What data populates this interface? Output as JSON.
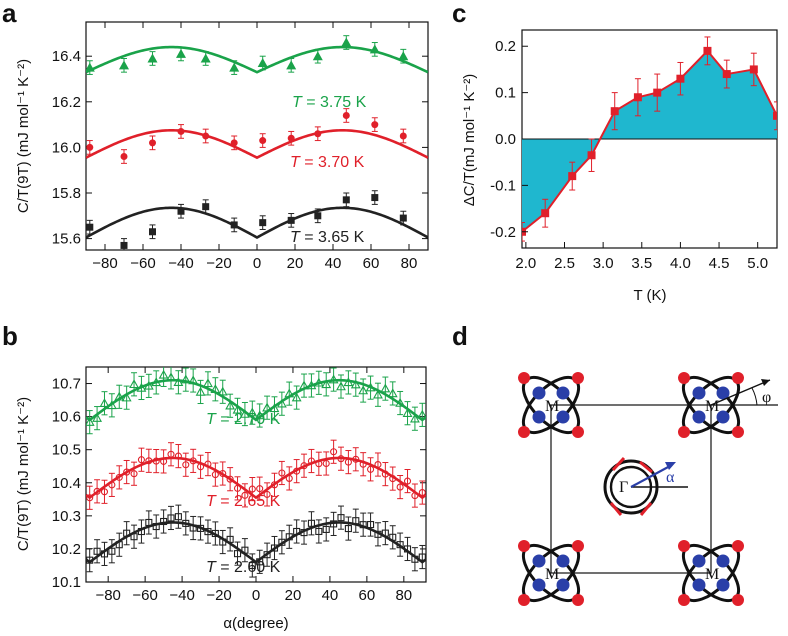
{
  "colors": {
    "green": "#1aa34a",
    "red": "#e0202a",
    "black": "#222222",
    "cyan": "#1fb7cf",
    "blue": "#2a3fa8"
  },
  "chart_data": [
    {
      "panel": "a",
      "type": "scatter",
      "ylabel": "C/T(9T) (mJ mol⁻¹ K⁻²)",
      "xlabel": "",
      "xlim": [
        -90,
        90
      ],
      "ylim": [
        15.55,
        16.55
      ],
      "xticks": [
        -80,
        -60,
        -40,
        -20,
        0,
        20,
        40,
        60,
        80
      ],
      "yticks": [
        15.6,
        15.8,
        16.0,
        16.2,
        16.4
      ],
      "ytick_labels": [
        "15.6",
        "15.8",
        "16.0",
        "16.2",
        "16.4"
      ],
      "series": [
        {
          "name": "T = 3.75 K",
          "label_prefix": "T",
          "label_value": " = 3.75 K",
          "color": "green",
          "marker": "triangle",
          "x": [
            -88,
            -70,
            -55,
            -40,
            -27,
            -12,
            3,
            18,
            32,
            47,
            62,
            77
          ],
          "y": [
            16.35,
            16.36,
            16.39,
            16.41,
            16.39,
            16.35,
            16.37,
            16.36,
            16.4,
            16.46,
            16.43,
            16.4
          ],
          "err": 0.03,
          "fit": {
            "base": 16.33,
            "amp": 0.11
          }
        },
        {
          "name": "T = 3.70 K",
          "label_prefix": "T",
          "label_value": " = 3.70 K",
          "color": "red",
          "marker": "circle",
          "x": [
            -88,
            -70,
            -55,
            -40,
            -27,
            -12,
            3,
            18,
            32,
            47,
            62,
            77
          ],
          "y": [
            16.0,
            15.96,
            16.02,
            16.07,
            16.05,
            16.02,
            16.03,
            16.04,
            16.06,
            16.14,
            16.1,
            16.05
          ],
          "err": 0.03,
          "fit": {
            "base": 15.955,
            "amp": 0.12
          }
        },
        {
          "name": "T = 3.65 K",
          "label_prefix": "T",
          "label_value": " = 3.65 K",
          "color": "black",
          "marker": "square",
          "x": [
            -88,
            -70,
            -55,
            -40,
            -27,
            -12,
            3,
            18,
            32,
            47,
            62,
            77
          ],
          "y": [
            15.65,
            15.57,
            15.63,
            15.72,
            15.74,
            15.66,
            15.67,
            15.68,
            15.7,
            15.77,
            15.78,
            15.69
          ],
          "err": 0.03,
          "fit": {
            "base": 15.605,
            "amp": 0.13
          }
        }
      ]
    },
    {
      "panel": "b",
      "type": "scatter",
      "ylabel": "C/T(9T) (mJ mol⁻¹ K⁻²)",
      "xlabel": "α(degree)",
      "xlim": [
        -92,
        92
      ],
      "ylim": [
        10.1,
        10.75
      ],
      "xticks": [
        -80,
        -60,
        -40,
        -20,
        0,
        20,
        40,
        60,
        80
      ],
      "yticks": [
        10.1,
        10.2,
        10.3,
        10.4,
        10.5,
        10.6,
        10.7
      ],
      "ytick_labels": [
        "10.1",
        "10.2",
        "10.3",
        "10.4",
        "10.5",
        "10.6",
        "10.7"
      ],
      "series": [
        {
          "name": "T = 2.70 K",
          "label_prefix": "T",
          "label_value": " = 2.70 K",
          "color": "green",
          "marker": "triangle-open",
          "fit": {
            "base": 10.59,
            "amp": 0.12
          },
          "err": 0.035,
          "noise": 0.02,
          "seed": 3
        },
        {
          "name": "T = 2.65 K",
          "label_prefix": "T",
          "label_value": " = 2.65 K",
          "color": "red",
          "marker": "circle-open",
          "fit": {
            "base": 10.355,
            "amp": 0.12
          },
          "err": 0.035,
          "noise": 0.02,
          "seed": 7
        },
        {
          "name": "T = 2.60 K",
          "label_prefix": "T",
          "label_value": " = 2.60 K",
          "color": "black",
          "marker": "square-open",
          "fit": {
            "base": 10.16,
            "amp": 0.12
          },
          "err": 0.035,
          "noise": 0.02,
          "seed": 11
        }
      ]
    },
    {
      "panel": "c",
      "type": "area",
      "ylabel": "ΔC/T(mJ mol⁻¹ K⁻²)",
      "xlabel": "T (K)",
      "xlim": [
        1.95,
        5.25
      ],
      "ylim": [
        -0.235,
        0.235
      ],
      "xticks": [
        2.0,
        2.5,
        3.0,
        3.5,
        4.0,
        4.5,
        5.0
      ],
      "xtick_labels": [
        "2.0",
        "2.5",
        "3.0",
        "3.5",
        "4.0",
        "4.5",
        "5.0"
      ],
      "yticks": [
        -0.2,
        -0.1,
        0.0,
        0.1,
        0.2
      ],
      "ytick_labels": [
        "-0.2",
        "-0.1",
        "0.0",
        "0.1",
        "0.2"
      ],
      "x": [
        1.95,
        2.25,
        2.6,
        2.85,
        3.15,
        3.45,
        3.7,
        4.0,
        4.35,
        4.6,
        4.95,
        5.25
      ],
      "y": [
        -0.2,
        -0.16,
        -0.08,
        -0.035,
        0.06,
        0.09,
        0.1,
        0.13,
        0.19,
        0.14,
        0.15,
        0.05
      ],
      "err": [
        0.02,
        0.03,
        0.03,
        0.035,
        0.04,
        0.04,
        0.04,
        0.035,
        0.03,
        0.03,
        0.035,
        0.03
      ]
    }
  ],
  "panel_d": {
    "letter": "d",
    "corner_labels": [
      "M",
      "M",
      "M",
      "M"
    ],
    "center_label": "Γ",
    "angle_alpha": "α",
    "angle_phi": "φ"
  },
  "letters": {
    "a": "a",
    "b": "b",
    "c": "c"
  }
}
